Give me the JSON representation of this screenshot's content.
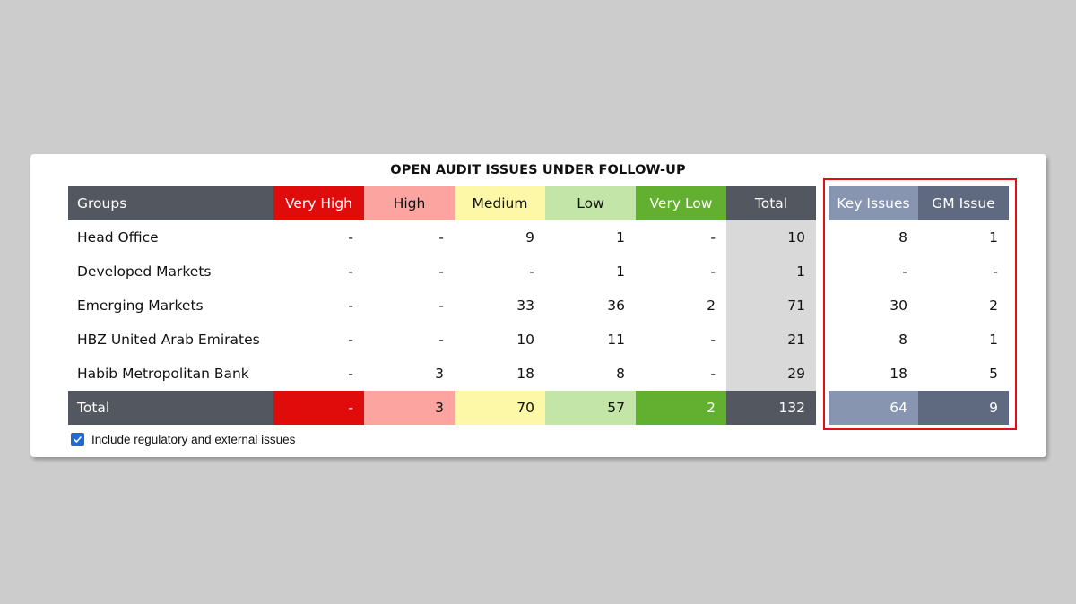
{
  "title": "OPEN AUDIT ISSUES UNDER FOLLOW-UP",
  "colors": {
    "dark_header": "#525760",
    "very_high": "#e00b0b",
    "high": "#fca5a0",
    "medium": "#fdf7a8",
    "low": "#c3e6a8",
    "very_low": "#63af30",
    "total_column": "#d9d9d9",
    "key_issues_header": "#8795b0",
    "gm_issue_header": "#5f6a80",
    "highlight_border": "#e01010",
    "checkbox": "#1f6ad0"
  },
  "headers": {
    "groups": "Groups",
    "very_high": "Very High",
    "high": "High",
    "medium": "Medium",
    "low": "Low",
    "very_low": "Very Low",
    "total": "Total",
    "key_issues": "Key Issues",
    "gm_issue": "GM Issue"
  },
  "rows": [
    {
      "group": "Head Office",
      "very_high": "-",
      "high": "-",
      "medium": "9",
      "low": "1",
      "very_low": "-",
      "total": "10",
      "key_issues": "8",
      "gm_issue": "1"
    },
    {
      "group": "Developed Markets",
      "very_high": "-",
      "high": "-",
      "medium": "-",
      "low": "1",
      "very_low": "-",
      "total": "1",
      "key_issues": "-",
      "gm_issue": "-"
    },
    {
      "group": "Emerging Markets",
      "very_high": "-",
      "high": "-",
      "medium": "33",
      "low": "36",
      "very_low": "2",
      "total": "71",
      "key_issues": "30",
      "gm_issue": "2"
    },
    {
      "group": "HBZ United Arab Emirates",
      "very_high": "-",
      "high": "-",
      "medium": "10",
      "low": "11",
      "very_low": "-",
      "total": "21",
      "key_issues": "8",
      "gm_issue": "1"
    },
    {
      "group": "Habib Metropolitan Bank",
      "very_high": "-",
      "high": "3",
      "medium": "18",
      "low": "8",
      "very_low": "-",
      "total": "29",
      "key_issues": "18",
      "gm_issue": "5"
    }
  ],
  "totals": {
    "label": "Total",
    "very_high": "-",
    "high": "3",
    "medium": "70",
    "low": "57",
    "very_low": "2",
    "total": "132",
    "key_issues": "64",
    "gm_issue": "9"
  },
  "checkbox": {
    "label": "Include regulatory and external issues",
    "checked": true,
    "icon": "checkmark-icon"
  }
}
